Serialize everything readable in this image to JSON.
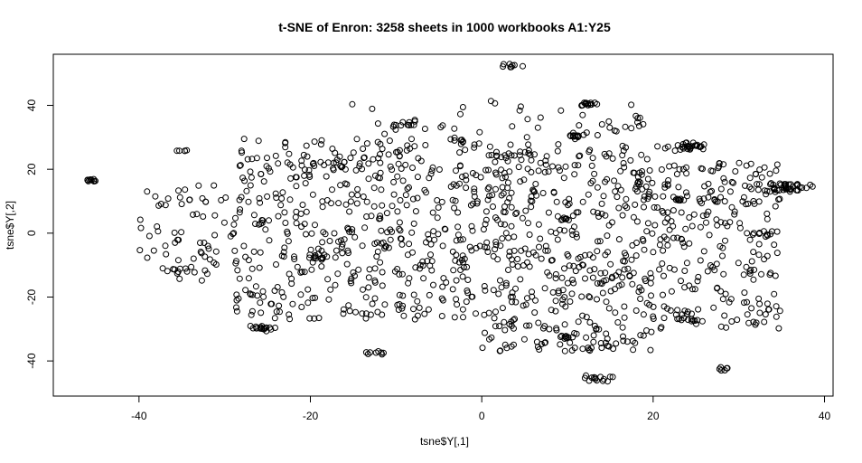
{
  "chart_data": {
    "type": "scatter",
    "title": "t-SNE of Enron: 3258 sheets in 1000 workbooks A1:Y25",
    "xlabel": "tsne$Y[,1]",
    "ylabel": "tsne$Y[,2]",
    "xlim": [
      -50,
      41
    ],
    "ylim": [
      -51,
      56
    ],
    "x_ticks": [
      -40,
      -20,
      0,
      20,
      40
    ],
    "y_ticks": [
      -40,
      -20,
      0,
      20,
      40
    ],
    "x_tick_labels": [
      "-40",
      "-20",
      "0",
      "20",
      "40"
    ],
    "y_tick_labels": [
      "-40",
      "-20",
      "0",
      "20",
      "40"
    ],
    "grid": false,
    "legend": "none",
    "marker": "open-circle",
    "color": "#000000",
    "clusters": [
      {
        "x": -45.5,
        "y": 16.5,
        "n": 10,
        "spread": 0.5
      },
      {
        "x": 3.5,
        "y": 52.5,
        "n": 8,
        "spread": 0.6
      },
      {
        "x": 12.5,
        "y": 40.5,
        "n": 14,
        "spread": 0.6
      },
      {
        "x": 11.0,
        "y": 30.5,
        "n": 12,
        "spread": 0.6
      },
      {
        "x": 24.0,
        "y": 27.0,
        "n": 30,
        "spread": 1.2
      },
      {
        "x": 35.5,
        "y": 14.5,
        "n": 45,
        "spread": 1.3
      },
      {
        "x": 23.0,
        "y": 10.5,
        "n": 8,
        "spread": 0.5
      },
      {
        "x": -19.5,
        "y": -7.5,
        "n": 14,
        "spread": 0.7
      },
      {
        "x": -26.0,
        "y": -29.8,
        "n": 18,
        "spread": 0.8
      },
      {
        "x": 13.5,
        "y": -45.5,
        "n": 14,
        "spread": 0.8
      },
      {
        "x": 28.0,
        "y": -42.5,
        "n": 6,
        "spread": 0.5
      },
      {
        "x": -34.8,
        "y": 25.8,
        "n": 5,
        "spread": 0.4
      },
      {
        "x": -12.5,
        "y": -37.5,
        "n": 8,
        "spread": 0.6
      },
      {
        "x": 24.0,
        "y": -27.0,
        "n": 10,
        "spread": 0.6
      },
      {
        "x": -9.5,
        "y": 34.0,
        "n": 14,
        "spread": 1.2
      },
      {
        "x": -17.0,
        "y": 21.0,
        "n": 16,
        "spread": 2.0
      },
      {
        "x": 10.0,
        "y": -32.5,
        "n": 8,
        "spread": 0.6
      },
      {
        "x": 33.0,
        "y": -0.5,
        "n": 8,
        "spread": 0.6
      },
      {
        "x": 27.5,
        "y": 10.0,
        "n": 5,
        "spread": 0.5
      },
      {
        "x": -35.0,
        "y": -12.0,
        "n": 10,
        "spread": 1.3
      },
      {
        "x": 3.0,
        "y": 24.0,
        "n": 14,
        "spread": 1.5
      },
      {
        "x": 10.0,
        "y": 4.5,
        "n": 8,
        "spread": 0.7
      },
      {
        "x": -3.0,
        "y": 29.0,
        "n": 6,
        "spread": 0.6
      }
    ],
    "background_regions": [
      {
        "x_min": -40,
        "x_max": -29,
        "y_min": -15,
        "y_max": 15,
        "n": 60
      },
      {
        "x_min": -29,
        "x_max": 0,
        "y_min": -27,
        "y_max": 30,
        "n": 480
      },
      {
        "x_min": 0,
        "x_max": 20,
        "y_min": -37,
        "y_max": 28,
        "n": 440
      },
      {
        "x_min": 20,
        "x_max": 35,
        "y_min": -30,
        "y_max": 22,
        "n": 230
      },
      {
        "x_min": -16,
        "x_max": 19,
        "y_min": 30,
        "y_max": 42,
        "n": 40
      }
    ]
  }
}
